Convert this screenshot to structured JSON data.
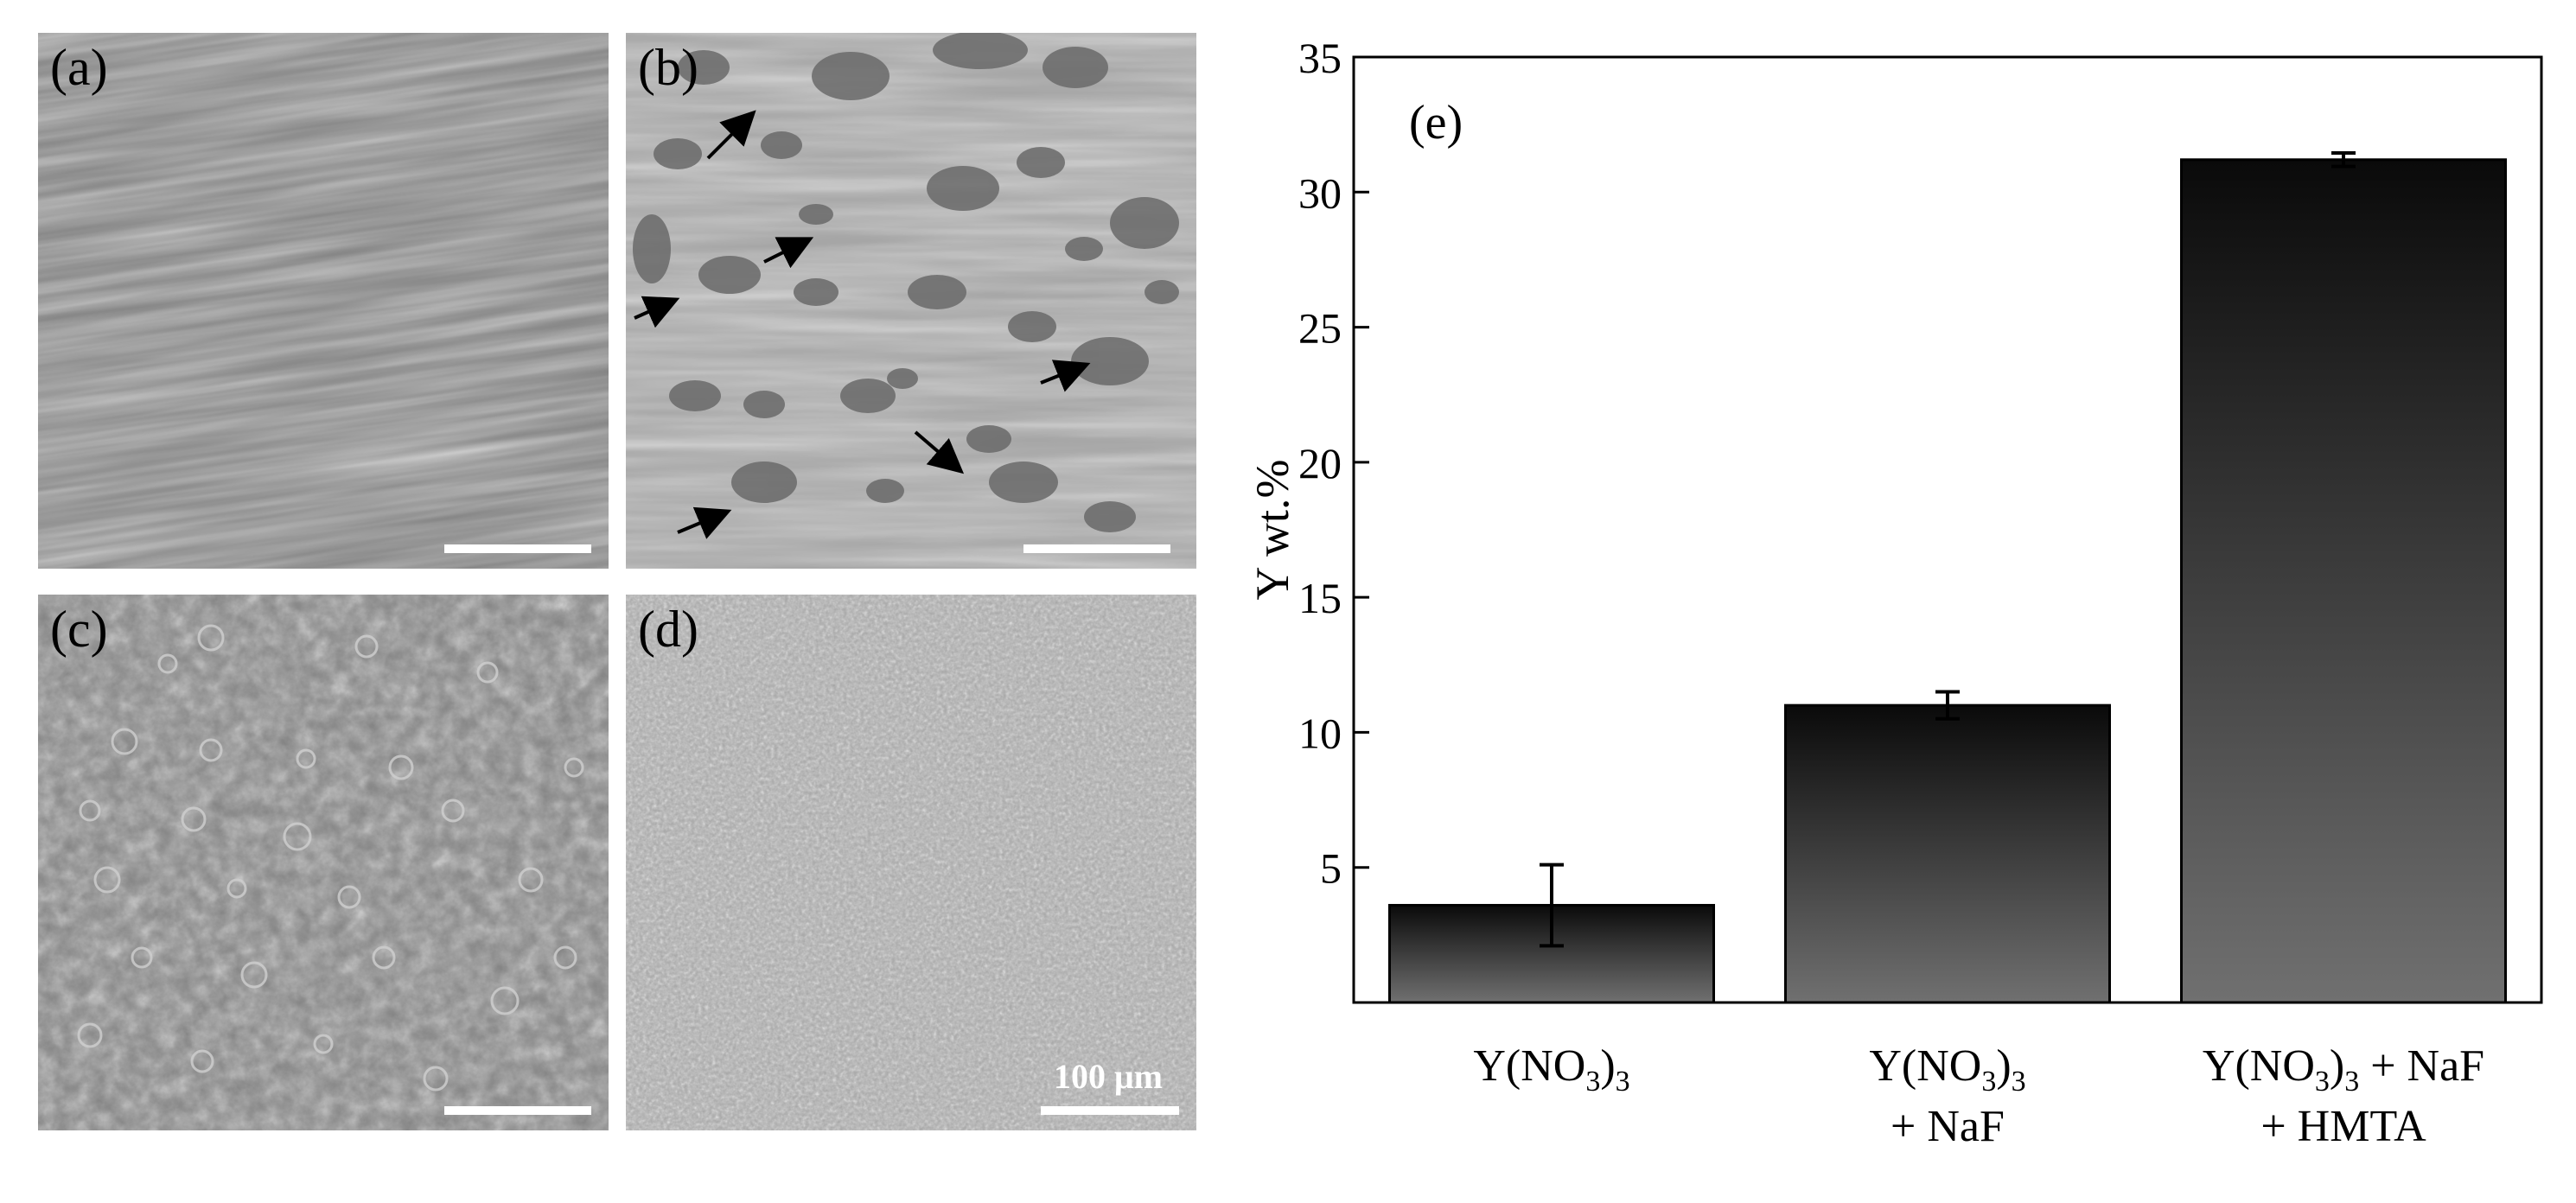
{
  "panels": [
    {
      "label": "(a)",
      "scale_label": ""
    },
    {
      "label": "(b)",
      "scale_label": ""
    },
    {
      "label": "(c)",
      "scale_label": ""
    },
    {
      "label": "(d)",
      "scale_label": "100 μm"
    }
  ],
  "chart_data": {
    "type": "bar",
    "panel_label": "(e)",
    "title": "",
    "xlabel": "",
    "ylabel": "Y wt.%",
    "ylim": [
      0,
      35
    ],
    "yticks": [
      5,
      10,
      15,
      20,
      25,
      30,
      35
    ],
    "grid": false,
    "legend": "none",
    "categories": [
      {
        "lines": [
          [
            {
              "t": "Y(NO",
              "s": false
            },
            {
              "t": "3",
              "s": true
            },
            {
              "t": ")",
              "s": false
            },
            {
              "t": "3",
              "s": true
            }
          ]
        ]
      },
      {
        "lines": [
          [
            {
              "t": "Y(NO",
              "s": false
            },
            {
              "t": "3",
              "s": true
            },
            {
              "t": ")",
              "s": false
            },
            {
              "t": "3",
              "s": true
            }
          ],
          [
            {
              "t": "+ NaF",
              "s": false
            }
          ]
        ]
      },
      {
        "lines": [
          [
            {
              "t": "Y(NO",
              "s": false
            },
            {
              "t": "3",
              "s": true
            },
            {
              "t": ")",
              "s": false
            },
            {
              "t": "3",
              "s": true
            },
            {
              "t": " + NaF",
              "s": false
            }
          ],
          [
            {
              "t": "+ HMTA",
              "s": false
            }
          ]
        ]
      }
    ],
    "values": [
      3.6,
      11.0,
      31.2
    ],
    "errors": [
      1.5,
      0.5,
      0.25
    ],
    "bar_gradient": [
      "#0a0a0a",
      "#707070"
    ]
  }
}
